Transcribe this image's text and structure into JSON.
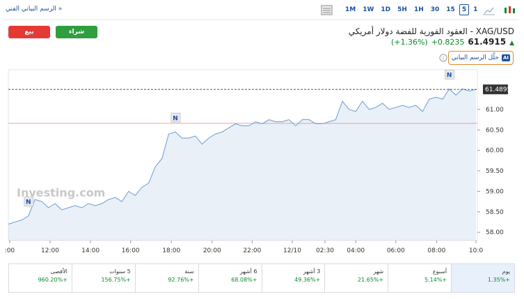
{
  "toolbar": {
    "link": "الرسم البياني الفني »",
    "timeframes": [
      "1M",
      "1W",
      "1D",
      "5H",
      "1H",
      "30",
      "15",
      "5",
      "1"
    ],
    "selected_index": 7
  },
  "header": {
    "title": "XAG/USD - العقود الفورية للفضة دولار أمريكي",
    "price": "61.4915",
    "change": "+0.8235",
    "change_pct": "(+1.36%)",
    "sell": "بيع",
    "buy": "شراء",
    "ai_button": "حلّل الرسم البياني",
    "ai_badge": "AI"
  },
  "chart_data": {
    "type": "area",
    "color": "#6a9bd1",
    "values": [
      58.2,
      58.25,
      58.3,
      58.4,
      58.8,
      58.75,
      58.6,
      58.7,
      58.55,
      58.6,
      58.65,
      58.6,
      58.7,
      58.65,
      58.7,
      58.8,
      58.85,
      58.75,
      59.0,
      58.9,
      59.1,
      59.2,
      59.6,
      59.8,
      60.4,
      60.45,
      60.3,
      60.3,
      60.35,
      60.15,
      60.3,
      60.4,
      60.45,
      60.55,
      60.65,
      60.6,
      60.6,
      60.7,
      60.65,
      60.75,
      60.7,
      60.7,
      60.75,
      60.6,
      60.75,
      60.75,
      60.65,
      60.65,
      60.7,
      60.75,
      61.2,
      61.0,
      60.95,
      61.2,
      61.0,
      61.05,
      61.15,
      61.0,
      61.05,
      61.1,
      61.05,
      61.1,
      60.95,
      61.25,
      61.3,
      61.25,
      61.5,
      61.35,
      61.5,
      61.45,
      61.49
    ],
    "xlim": [
      0,
      70
    ],
    "xticks": [
      {
        "value": 0.2,
        "label": ":00"
      },
      {
        "value": 6.25,
        "label": "12:00"
      },
      {
        "value": 12.3,
        "label": "14:00"
      },
      {
        "value": 18.3,
        "label": "16:00"
      },
      {
        "value": 24.4,
        "label": "18:00"
      },
      {
        "value": 30.5,
        "label": "20:00"
      },
      {
        "value": 36.5,
        "label": "22:00"
      },
      {
        "value": 42.5,
        "label": "12/10"
      },
      {
        "value": 47.4,
        "label": "02:30"
      },
      {
        "value": 52,
        "label": "04:00"
      },
      {
        "value": 58,
        "label": "06:00"
      },
      {
        "value": 64.1,
        "label": "08:00"
      },
      {
        "value": 70,
        "label": "10:0"
      }
    ],
    "ylim": [
      57.8,
      61.97
    ],
    "yticks": [
      {
        "value": 58,
        "label": "58.00"
      },
      {
        "value": 58.5,
        "label": "58.50"
      },
      {
        "value": 59,
        "label": "59.00"
      },
      {
        "value": 59.5,
        "label": "59.50"
      },
      {
        "value": 60,
        "label": "60.00"
      },
      {
        "value": 60.5,
        "label": "60.50"
      },
      {
        "value": 61,
        "label": "61.00"
      }
    ],
    "last_price": 61.4895,
    "prev_close": 60.66,
    "watermark": "Investing.com",
    "news": [
      {
        "x": 3,
        "label": "N"
      },
      {
        "x": 25,
        "label": "N"
      },
      {
        "x": 66,
        "label": "N"
      }
    ]
  },
  "periods": [
    {
      "label": "يوم",
      "change": "+1.35%"
    },
    {
      "label": "أسبوع",
      "change": "+5.14%"
    },
    {
      "label": "شهر",
      "change": "+21.65%"
    },
    {
      "label": "3 أشهر",
      "change": "+49.36%"
    },
    {
      "label": "6 أشهر",
      "change": "+68.08%"
    },
    {
      "label": "سنة",
      "change": "+92.76%"
    },
    {
      "label": "5 سنوات",
      "change": "+156.75%"
    },
    {
      "label": "الأقصى",
      "change": "+960.20%"
    }
  ]
}
